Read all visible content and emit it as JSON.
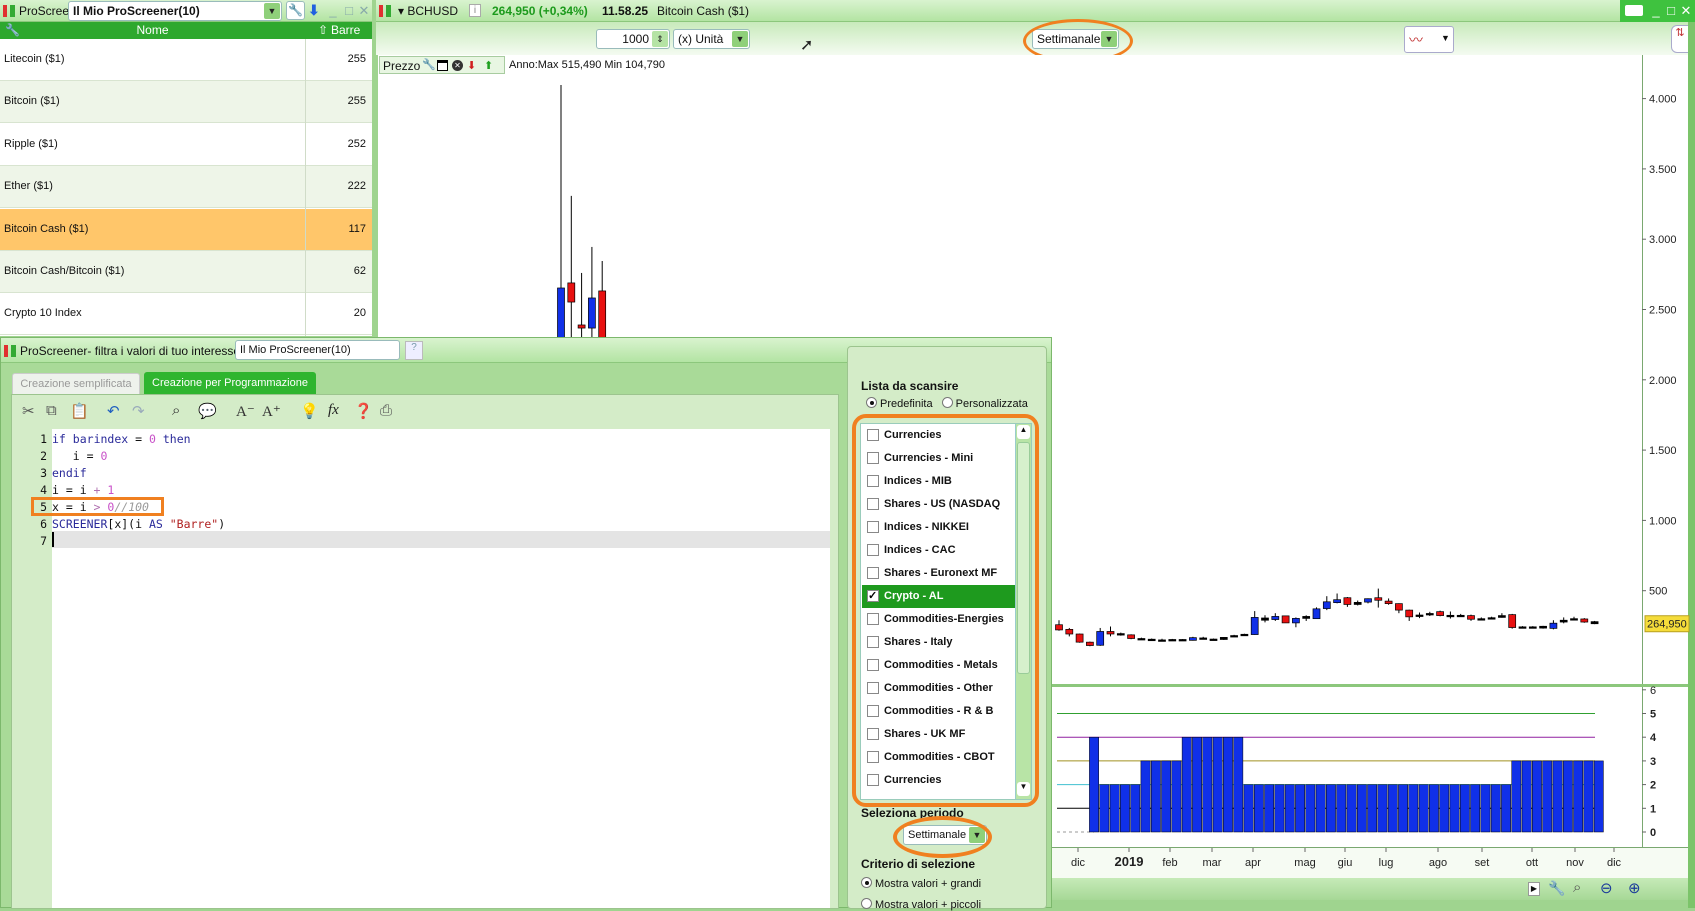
{
  "screener_panel": {
    "title": "ProScreener",
    "selected_screener": "Il Mio ProScreener(10)",
    "columns": {
      "name": "Nome",
      "value": "Barre"
    },
    "rows": [
      {
        "name": "Litecoin ($1)",
        "value": "255"
      },
      {
        "name": "Bitcoin ($1)",
        "value": "255"
      },
      {
        "name": "Ripple ($1)",
        "value": "252"
      },
      {
        "name": "Ether ($1)",
        "value": "222"
      },
      {
        "name": "Bitcoin Cash ($1)",
        "value": "117",
        "selected": true
      },
      {
        "name": "Bitcoin Cash/Bitcoin ($1)",
        "value": "62"
      },
      {
        "name": "Crypto 10 Index",
        "value": "20"
      }
    ]
  },
  "chart_window": {
    "symbol": "BCHUSD",
    "price_change": "264,950 (+0,34%)",
    "time": "11.58.25",
    "instrument": "Bitcoin Cash ($1)",
    "units_value": "1000",
    "units_label": "(x) Unità",
    "timeframe": "Settimanale",
    "price_panel_label": "Prezzo",
    "year_range": "Anno:Max 515,490 Min 104,790",
    "last_price_tag": "264,950",
    "colors": {
      "up": "#1030e8",
      "down": "#e81010",
      "highlight": "#f08020",
      "accent_green": "#2ea82e"
    }
  },
  "chart_data": [
    {
      "type": "candlestick",
      "title": "",
      "ylabel": "",
      "y_ticks": [
        "4.000",
        "3.500",
        "3.000",
        "2.500",
        "2.000",
        "1.500",
        "1.000",
        "500"
      ],
      "y_tick_values": [
        4000,
        3500,
        3000,
        2500,
        2000,
        1500,
        1000,
        500
      ],
      "x_ticks": [
        "dic",
        "2019",
        "feb",
        "mar",
        "apr",
        "mag",
        "giu",
        "lug",
        "ago",
        "set",
        "ott",
        "nov",
        "dic"
      ],
      "candles_early": [
        [
          2000,
          4097,
          2000,
          2653
        ],
        [
          2689,
          3308,
          2200,
          2553
        ],
        [
          2390,
          2760,
          2200,
          2368
        ],
        [
          2368,
          2945,
          2200,
          2582
        ],
        [
          2632,
          2845,
          2200,
          2300
        ]
      ],
      "candles": [
        [
          258,
          290,
          215,
          221
        ],
        [
          225,
          235,
          175,
          192
        ],
        [
          192,
          195,
          130,
          134
        ],
        [
          134,
          138,
          105,
          110
        ],
        [
          112,
          235,
          108,
          210
        ],
        [
          210,
          245,
          175,
          192
        ],
        [
          195,
          202,
          180,
          186
        ],
        [
          186,
          190,
          155,
          160
        ],
        [
          160,
          166,
          153,
          158
        ],
        [
          155,
          160,
          150,
          154
        ],
        [
          150,
          158,
          142,
          150
        ],
        [
          153,
          157,
          149,
          153
        ],
        [
          153,
          156,
          150,
          153
        ],
        [
          147,
          172,
          145,
          166
        ],
        [
          164,
          172,
          158,
          163
        ],
        [
          156,
          160,
          152,
          155
        ],
        [
          153,
          170,
          150,
          168
        ],
        [
          181,
          186,
          177,
          181
        ],
        [
          190,
          194,
          184,
          190
        ],
        [
          188,
          355,
          186,
          310
        ],
        [
          306,
          325,
          275,
          290
        ],
        [
          295,
          340,
          285,
          317
        ],
        [
          321,
          321,
          271,
          271
        ],
        [
          271,
          310,
          240,
          303
        ],
        [
          317,
          325,
          285,
          303
        ],
        [
          301,
          381,
          301,
          371
        ],
        [
          373,
          461,
          362,
          421
        ],
        [
          415,
          480,
          410,
          436
        ],
        [
          450,
          455,
          385,
          402
        ],
        [
          402,
          430,
          395,
          417
        ],
        [
          419,
          445,
          410,
          443
        ],
        [
          450,
          515,
          380,
          432
        ],
        [
          426,
          445,
          400,
          408
        ],
        [
          408,
          410,
          340,
          362
        ],
        [
          362,
          365,
          285,
          314
        ],
        [
          327,
          345,
          305,
          327
        ],
        [
          338,
          350,
          320,
          338
        ],
        [
          351,
          358,
          318,
          323
        ],
        [
          325,
          352,
          302,
          325
        ],
        [
          325,
          335,
          315,
          325
        ],
        [
          323,
          330,
          285,
          297
        ],
        [
          301,
          310,
          290,
          301
        ],
        [
          308,
          315,
          300,
          308
        ],
        [
          310,
          340,
          308,
          323
        ],
        [
          330,
          335,
          230,
          238
        ],
        [
          243,
          248,
          238,
          243
        ],
        [
          243,
          248,
          238,
          243
        ],
        [
          247,
          250,
          230,
          234
        ],
        [
          232,
          290,
          225,
          269
        ],
        [
          277,
          310,
          268,
          290
        ],
        [
          301,
          315,
          290,
          301
        ],
        [
          299,
          305,
          272,
          277
        ],
        [
          280,
          285,
          262,
          265
        ]
      ]
    },
    {
      "type": "bar",
      "title": "",
      "y_ticks": [
        "6",
        "5",
        "4",
        "3",
        "2",
        "1",
        "0"
      ],
      "ylim": [
        0,
        6
      ],
      "reference_lines": [
        {
          "value": 5,
          "color": "#30a030"
        },
        {
          "value": 4,
          "color": "#9020a0"
        },
        {
          "value": 3,
          "color": "#a09020"
        },
        {
          "value": 2,
          "color": "#40c0d0"
        },
        {
          "value": 1,
          "color": "#000000"
        }
      ],
      "bar_color": "#1030e8",
      "values": [
        4,
        2,
        2,
        2,
        2,
        3,
        3,
        3,
        3,
        4,
        4,
        4,
        4,
        4,
        4,
        2,
        2,
        2,
        2,
        2,
        2,
        2,
        2,
        2,
        2,
        2,
        2,
        2,
        2,
        2,
        2,
        2,
        2,
        2,
        2,
        2,
        2,
        2,
        2,
        2,
        2,
        3,
        3,
        3,
        3,
        3,
        3,
        3,
        3,
        3
      ]
    }
  ],
  "editor_window": {
    "title": "ProScreener- filtra i valori di tuo interesse  -",
    "screener_name": "Il Mio ProScreener(10)",
    "tabs": [
      {
        "label": "Creazione semplificata",
        "active": false
      },
      {
        "label": "Creazione per Programmazione",
        "active": true
      }
    ],
    "code": [
      [
        {
          "t": "if",
          "c": "kw"
        },
        {
          "t": " "
        },
        {
          "t": "barindex",
          "c": "kw"
        },
        {
          "t": " = "
        },
        {
          "t": "0",
          "c": "num"
        },
        {
          "t": " "
        },
        {
          "t": "then",
          "c": "kw"
        }
      ],
      [
        {
          "t": "   i = "
        },
        {
          "t": "0",
          "c": "num"
        }
      ],
      [
        {
          "t": "endif",
          "c": "kw"
        }
      ],
      [
        {
          "t": "i = i "
        },
        {
          "t": "+",
          "c": "op"
        },
        {
          "t": " "
        },
        {
          "t": "1",
          "c": "num"
        }
      ],
      [
        {
          "t": "x = i "
        },
        {
          "t": ">",
          "c": "op"
        },
        {
          "t": " "
        },
        {
          "t": "0",
          "c": "num"
        },
        {
          "t": "//100",
          "c": "cmt"
        }
      ],
      [
        {
          "t": "SCREENER",
          "c": "kw"
        },
        {
          "t": "[x](i "
        },
        {
          "t": "AS",
          "c": "kw"
        },
        {
          "t": " "
        },
        {
          "t": "\"Barre\"",
          "c": "str"
        },
        {
          "t": ")"
        }
      ],
      [
        {
          "t": ""
        }
      ]
    ],
    "scan_list": {
      "heading": "Lista da scansire",
      "options": [
        {
          "label": "Predefinita",
          "checked": true
        },
        {
          "label": "Personalizzata",
          "checked": false
        }
      ],
      "items": [
        {
          "label": "Currencies",
          "checked": false
        },
        {
          "label": "Currencies - Mini",
          "checked": false
        },
        {
          "label": "Indices - MIB",
          "checked": false
        },
        {
          "label": "Shares - US (NASDAQ",
          "checked": false
        },
        {
          "label": "Indices - NIKKEI",
          "checked": false
        },
        {
          "label": "Indices - CAC",
          "checked": false
        },
        {
          "label": "Shares - Euronext MF",
          "checked": false
        },
        {
          "label": "Crypto - AL",
          "checked": true
        },
        {
          "label": "Commodities-Energies",
          "checked": false
        },
        {
          "label": "Shares - Italy",
          "checked": false
        },
        {
          "label": "Commodities - Metals",
          "checked": false
        },
        {
          "label": "Commodities - Other",
          "checked": false
        },
        {
          "label": "Commodities - R & B",
          "checked": false
        },
        {
          "label": "Shares - UK MF",
          "checked": false
        },
        {
          "label": "Commodities - CBOT",
          "checked": false
        },
        {
          "label": "Currencies",
          "checked": false
        }
      ]
    },
    "period": {
      "heading": "Seleziona periodo",
      "value": "Settimanale"
    },
    "criteria": {
      "heading": "Criterio di selezione",
      "options": [
        {
          "label": "Mostra valori + grandi",
          "checked": true
        },
        {
          "label": "Mostra valori + piccoli",
          "checked": false
        }
      ]
    }
  }
}
